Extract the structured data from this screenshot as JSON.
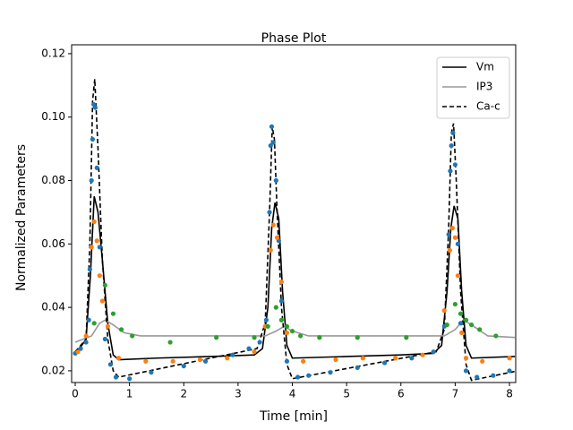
{
  "chart_data": {
    "type": "line",
    "title": "Phase Plot",
    "x_label": "Time [min]",
    "y_label": "Normalized Parameters",
    "xlim": [
      -0.066,
      8.115
    ],
    "ylim": [
      0.0163,
      0.1228
    ],
    "xticks": [
      0,
      1,
      2,
      3,
      4,
      5,
      6,
      7,
      8
    ],
    "yticks": [
      0.02,
      0.04,
      0.06,
      0.08,
      {
        "value": 0.1,
        "label": "0.10"
      },
      0.12
    ],
    "legend": "upper right",
    "series": [
      {
        "name": "Vm",
        "color": "#000000",
        "style": "solid",
        "x": [
          0,
          0.2,
          0.28,
          0.35,
          0.42,
          0.5,
          0.6,
          0.7,
          0.8,
          1.5,
          2.5,
          3.3,
          3.45,
          3.55,
          3.62,
          3.68,
          3.75,
          3.82,
          3.9,
          4.0,
          5,
          6,
          6.6,
          6.75,
          6.85,
          6.92,
          6.98,
          7.05,
          7.12,
          7.2,
          7.3,
          8.1
        ],
        "values": [
          0.025,
          0.03,
          0.05,
          0.075,
          0.07,
          0.055,
          0.035,
          0.025,
          0.0235,
          0.024,
          0.0245,
          0.025,
          0.027,
          0.04,
          0.065,
          0.073,
          0.068,
          0.045,
          0.028,
          0.024,
          0.0245,
          0.025,
          0.0255,
          0.028,
          0.045,
          0.065,
          0.072,
          0.068,
          0.045,
          0.028,
          0.024,
          0.0245
        ]
      },
      {
        "name": "IP3",
        "color": "#999999",
        "style": "solid",
        "x": [
          0,
          0.3,
          0.45,
          0.55,
          0.7,
          0.9,
          1.2,
          3.5,
          3.7,
          3.85,
          4.0,
          4.3,
          6.8,
          7.0,
          7.15,
          7.3,
          7.6,
          8.1
        ],
        "values": [
          0.029,
          0.031,
          0.035,
          0.036,
          0.0345,
          0.032,
          0.031,
          0.031,
          0.0325,
          0.034,
          0.0325,
          0.031,
          0.031,
          0.033,
          0.036,
          0.0345,
          0.031,
          0.0305
        ]
      },
      {
        "name": "Ca-c",
        "color": "#000000",
        "style": "dashed",
        "x": [
          0,
          0.2,
          0.27,
          0.32,
          0.36,
          0.42,
          0.5,
          0.6,
          0.7,
          0.8,
          3.35,
          3.5,
          3.58,
          3.63,
          3.67,
          3.72,
          3.8,
          3.9,
          4.0,
          6.65,
          6.8,
          6.88,
          6.93,
          6.97,
          7.02,
          7.1,
          7.2,
          7.3,
          8.1
        ],
        "values": [
          0.026,
          0.03,
          0.06,
          0.105,
          0.112,
          0.09,
          0.055,
          0.03,
          0.02,
          0.018,
          0.027,
          0.035,
          0.07,
          0.097,
          0.093,
          0.07,
          0.04,
          0.022,
          0.0175,
          0.026,
          0.033,
          0.065,
          0.095,
          0.098,
          0.08,
          0.045,
          0.022,
          0.017,
          0.0198
        ]
      }
    ],
    "points": [
      {
        "color": "#1f77b4",
        "x": [
          0,
          0.1,
          0.2,
          0.25,
          0.27,
          0.3,
          0.32,
          0.34,
          0.37,
          0.4,
          0.45,
          0.55,
          0.65,
          0.75,
          1.0,
          1.4,
          2.0,
          2.4,
          2.9,
          3.2,
          3.4,
          3.52,
          3.58,
          3.6,
          3.62,
          3.65,
          3.7,
          3.75,
          3.8,
          3.9,
          4.1,
          4.3,
          4.7,
          5.2,
          5.7,
          6.2,
          6.6,
          6.8,
          6.88,
          6.91,
          6.93,
          6.96,
          7.0,
          7.05,
          7.1,
          7.2,
          7.4,
          7.7,
          8.0
        ],
        "values": [
          0.0255,
          0.027,
          0.029,
          0.036,
          0.052,
          0.08,
          0.093,
          0.104,
          0.103,
          0.084,
          0.059,
          0.03,
          0.022,
          0.018,
          0.0175,
          0.0195,
          0.0215,
          0.023,
          0.025,
          0.027,
          0.029,
          0.036,
          0.07,
          0.091,
          0.097,
          0.092,
          0.08,
          0.061,
          0.042,
          0.023,
          0.018,
          0.0185,
          0.0195,
          0.021,
          0.0225,
          0.024,
          0.026,
          0.034,
          0.063,
          0.083,
          0.091,
          0.095,
          0.085,
          0.06,
          0.035,
          0.02,
          0.018,
          0.0185,
          0.02
        ]
      },
      {
        "color": "#ff7f0e",
        "x": [
          0.05,
          0.2,
          0.3,
          0.35,
          0.4,
          0.45,
          0.5,
          0.6,
          0.8,
          1.3,
          1.8,
          2.3,
          2.8,
          3.3,
          3.5,
          3.6,
          3.65,
          3.72,
          3.8,
          3.9,
          4.2,
          4.8,
          5.3,
          5.9,
          6.4,
          6.8,
          6.9,
          6.95,
          7.0,
          7.05,
          7.12,
          7.2,
          7.5,
          8.0
        ],
        "values": [
          0.026,
          0.031,
          0.059,
          0.067,
          0.061,
          0.05,
          0.042,
          0.034,
          0.024,
          0.023,
          0.023,
          0.0235,
          0.024,
          0.026,
          0.034,
          0.058,
          0.066,
          0.062,
          0.048,
          0.032,
          0.023,
          0.0235,
          0.024,
          0.024,
          0.025,
          0.039,
          0.058,
          0.065,
          0.062,
          0.05,
          0.032,
          0.024,
          0.023,
          0.024
        ]
      },
      {
        "color": "#2ca02c",
        "x": [
          0.35,
          0.55,
          0.7,
          0.85,
          1.05,
          1.75,
          2.6,
          3.3,
          3.55,
          3.7,
          3.8,
          3.9,
          4.0,
          4.15,
          4.5,
          5.2,
          6.1,
          6.85,
          7.0,
          7.1,
          7.2,
          7.3,
          7.45,
          7.75
        ],
        "values": [
          0.035,
          0.047,
          0.038,
          0.033,
          0.031,
          0.029,
          0.0305,
          0.0305,
          0.034,
          0.04,
          0.036,
          0.034,
          0.0325,
          0.031,
          0.0305,
          0.0305,
          0.0305,
          0.0345,
          0.041,
          0.038,
          0.036,
          0.0345,
          0.033,
          0.031
        ]
      }
    ]
  }
}
